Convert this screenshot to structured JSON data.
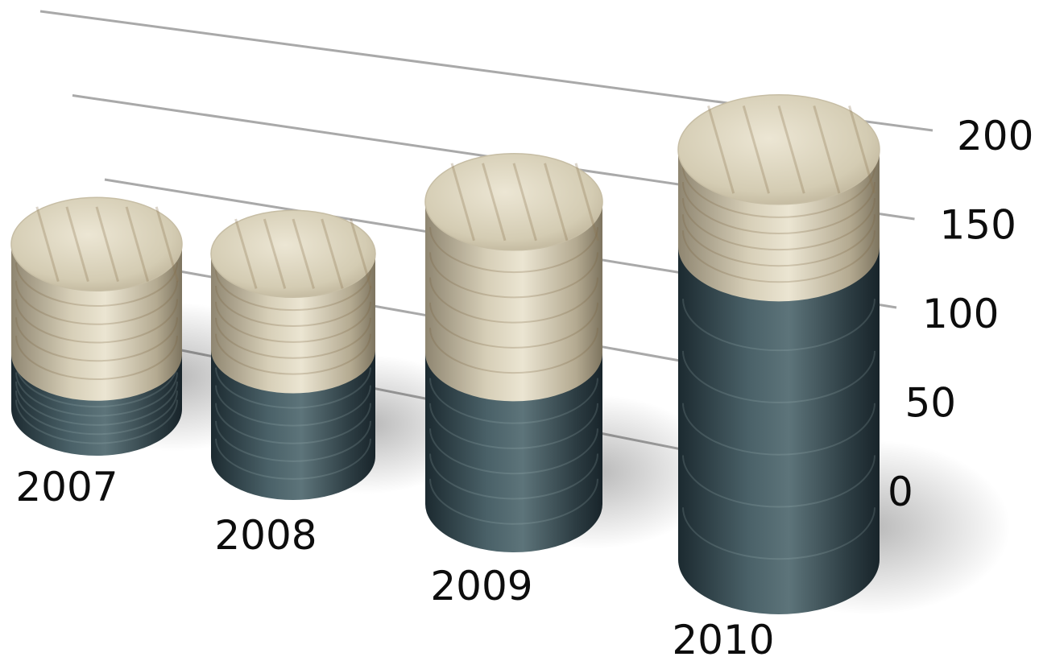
{
  "chart_data": {
    "type": "bar",
    "style": "3d-stacked-cylinder",
    "title": "",
    "xlabel": "",
    "ylabel": "",
    "categories": [
      "2007",
      "2008",
      "2009",
      "2010"
    ],
    "series": [
      {
        "values": [
          25,
          50,
          70,
          145
        ],
        "color": "#3a4f56",
        "texture": "dark-green-marble"
      },
      {
        "values": [
          50,
          45,
          70,
          45
        ],
        "color": "#d9d2bb",
        "texture": "light-wood-marble"
      }
    ],
    "yticks": [
      "0",
      "50",
      "100",
      "150",
      "200"
    ],
    "ylim": [
      0,
      200
    ],
    "grid": true,
    "legend": "none"
  }
}
